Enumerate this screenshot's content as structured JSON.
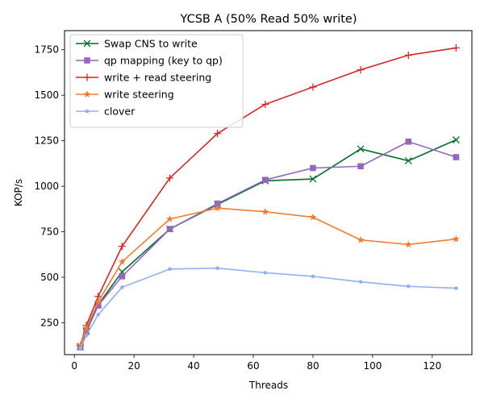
{
  "chart_data": {
    "type": "line",
    "title": "YCSB A (50% Read 50% write)",
    "xlabel": "Threads",
    "ylabel": "KOP/s",
    "xlim": [
      -3.3,
      133.3
    ],
    "ylim": [
      75,
      1855
    ],
    "xticks": [
      0,
      20,
      40,
      60,
      80,
      100,
      120
    ],
    "yticks": [
      250,
      500,
      750,
      1000,
      1250,
      1500,
      1750
    ],
    "grid": false,
    "legend_position": "top-left",
    "series": [
      {
        "name": "Swap CNS to write",
        "color": "#006d2c",
        "marker": "x",
        "x": [
          2,
          4,
          8,
          16,
          32,
          48,
          64,
          80,
          96,
          112,
          128
        ],
        "y": [
          120,
          205,
          350,
          530,
          765,
          900,
          1030,
          1040,
          1205,
          1140,
          1255
        ]
      },
      {
        "name": "qp mapping (key to qp)",
        "color": "#9467bd",
        "marker": "s",
        "x": [
          2,
          4,
          8,
          16,
          32,
          48,
          64,
          80,
          96,
          112,
          128
        ],
        "y": [
          115,
          200,
          345,
          505,
          765,
          905,
          1035,
          1100,
          1110,
          1245,
          1160
        ]
      },
      {
        "name": "write + read steering",
        "color": "#d62728",
        "marker": "+",
        "x": [
          2,
          4,
          8,
          16,
          32,
          48,
          64,
          80,
          96,
          112,
          128
        ],
        "y": [
          125,
          235,
          395,
          670,
          1045,
          1290,
          1450,
          1545,
          1640,
          1720,
          1760
        ]
      },
      {
        "name": "write steering",
        "color": "#ed7d31",
        "marker": "*",
        "x": [
          2,
          4,
          8,
          16,
          32,
          48,
          64,
          80,
          96,
          112,
          128
        ],
        "y": [
          125,
          220,
          365,
          585,
          820,
          880,
          860,
          830,
          705,
          680,
          710
        ]
      },
      {
        "name": "clover",
        "color": "#8fb0f0",
        "marker": ".",
        "x": [
          2,
          4,
          8,
          16,
          32,
          48,
          64,
          80,
          96,
          112,
          128
        ],
        "y": [
          110,
          180,
          295,
          445,
          545,
          550,
          525,
          505,
          475,
          450,
          440
        ]
      }
    ]
  }
}
